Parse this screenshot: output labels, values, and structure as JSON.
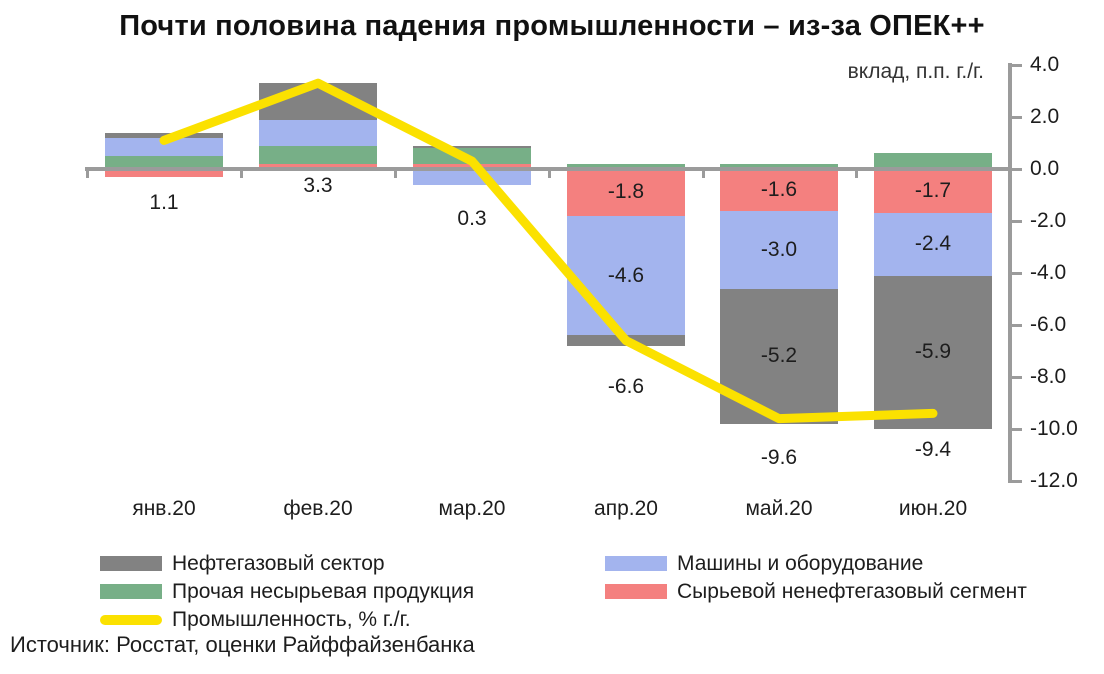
{
  "title": "Почти половина падения промышленности – из-за ОПЕК++",
  "axis_unit_label": "вклад, п.п. г./г.",
  "source": "Источник: Росстат, оценки Райффайзенбанка",
  "colors": {
    "oil_gas": "#828282",
    "machinery": "#A3B4EE",
    "other_noncommodity": "#77AF87",
    "commodity_non_oilgas": "#F4807F",
    "industry_line": "#FBE100",
    "axis": "#9B9B9B",
    "text": "#1d1d1d"
  },
  "legend": {
    "items": [
      {
        "label": "Нефтегазовый сектор",
        "color_key": "oil_gas",
        "swatch": "box",
        "col": 1
      },
      {
        "label": "Прочая несырьевая продукция",
        "color_key": "other_noncommodity",
        "swatch": "box",
        "col": 1
      },
      {
        "label": "Промышленность, % г./г.",
        "color_key": "industry_line",
        "swatch": "line",
        "col": 1
      },
      {
        "label": "Машины и оборудование",
        "color_key": "machinery",
        "swatch": "box",
        "col": 2
      },
      {
        "label": "Сырьевой ненефтегазовый сегмент",
        "color_key": "commodity_non_oilgas",
        "swatch": "box",
        "col": 2
      }
    ]
  },
  "chart_data": {
    "type": "bar",
    "subtype": "stacked-bar-with-line",
    "categories": [
      "янв.20",
      "фев.20",
      "мар.20",
      "апр.20",
      "май.20",
      "июн.20"
    ],
    "series": [
      {
        "name": "Сырьевой ненефтегазовый сегмент",
        "color_key": "commodity_non_oilgas",
        "values": [
          -0.3,
          0.2,
          0.2,
          -1.8,
          -1.6,
          -1.7
        ]
      },
      {
        "name": "Прочая несырьевая продукция",
        "color_key": "other_noncommodity",
        "values": [
          0.5,
          0.7,
          0.6,
          0.2,
          0.2,
          0.6
        ]
      },
      {
        "name": "Машины и оборудование",
        "color_key": "machinery",
        "values": [
          0.7,
          1.0,
          -0.6,
          -4.6,
          -3.0,
          -2.4
        ]
      },
      {
        "name": "Нефтегазовый сектор",
        "color_key": "oil_gas",
        "values": [
          0.2,
          1.4,
          0.1,
          -0.4,
          -5.2,
          -5.9
        ]
      }
    ],
    "line": {
      "name": "Промышленность, % г./г.",
      "color_key": "industry_line",
      "values": [
        1.1,
        3.3,
        0.3,
        -6.6,
        -9.6,
        -9.4
      ]
    },
    "totals": [
      1.1,
      3.3,
      0.3,
      -6.6,
      -9.6,
      -9.4
    ],
    "visible_segment_labels": [
      -1.8,
      -4.6,
      -1.6,
      -3.0,
      -5.2,
      -1.7,
      -2.4,
      -5.9
    ],
    "y_ticks": [
      4.0,
      2.0,
      0.0,
      -2.0,
      -4.0,
      -6.0,
      -8.0,
      -10.0,
      -12.0
    ],
    "ylim": [
      -12.0,
      4.0
    ],
    "ylabel": "вклад, п.п. г./г.",
    "grid": false,
    "legend_position": "bottom"
  }
}
